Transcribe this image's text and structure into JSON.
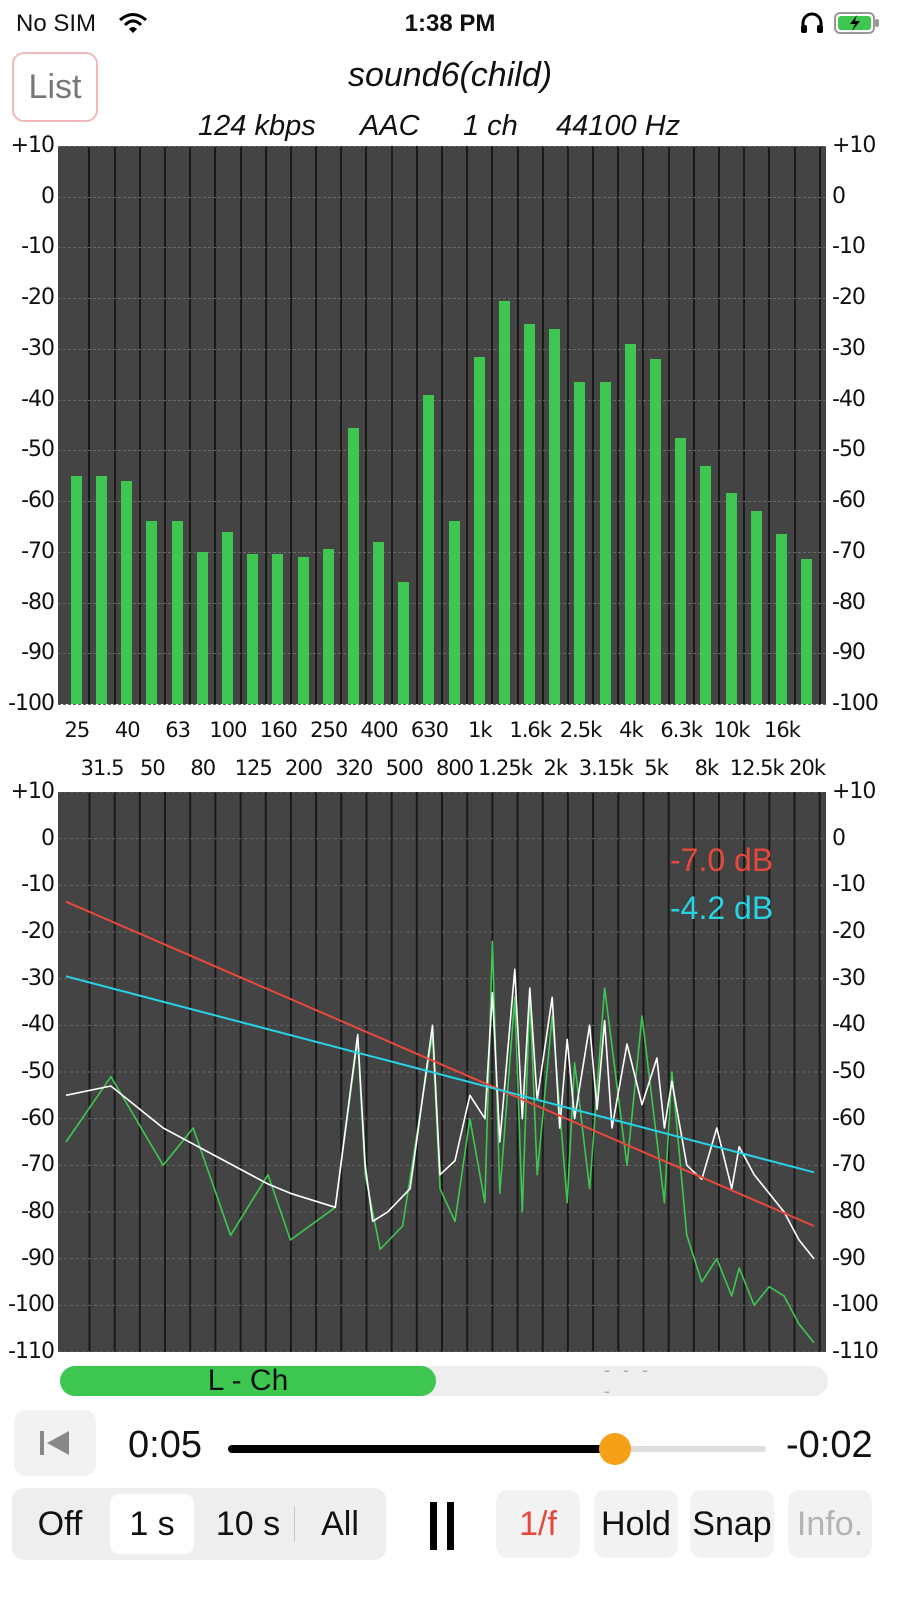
{
  "status_bar": {
    "carrier": "No SIM",
    "time": "1:38 PM"
  },
  "header": {
    "list_button": "List",
    "title": "sound6(child)",
    "bitrate": "124 kbps",
    "codec": "AAC",
    "channels": "1 ch",
    "sample_rate": "44100 Hz"
  },
  "chart_data": [
    {
      "type": "bar",
      "ylim": [
        -100,
        10
      ],
      "y_ticks": [
        "+10",
        "0",
        "-10",
        "-20",
        "-30",
        "-40",
        "-50",
        "-60",
        "-70",
        "-80",
        "-90",
        "-100"
      ],
      "categories": [
        "25",
        "31.5",
        "40",
        "50",
        "63",
        "80",
        "100",
        "125",
        "160",
        "200",
        "250",
        "320",
        "400",
        "500",
        "630",
        "800",
        "1k",
        "1.25k",
        "1.6k",
        "2k",
        "2.5k",
        "3.15k",
        "4k",
        "5k",
        "6.3k",
        "8k",
        "10k",
        "12.5k",
        "16k",
        "20k"
      ],
      "values": [
        -55,
        -55,
        -56,
        -64,
        -64,
        -70,
        -66,
        -70.5,
        -70.5,
        -71,
        -69.5,
        -45.5,
        -68,
        -76,
        -39,
        -64,
        -31.5,
        -20.5,
        -25,
        -26,
        -36.5,
        -36.5,
        -29,
        -32,
        -47.5,
        -53,
        -58.5,
        -62,
        -66.5,
        -71.5
      ],
      "grid": true,
      "colors": {
        "bar": "#3dc751",
        "background": "#444444"
      }
    },
    {
      "type": "line",
      "ylim": [
        -110,
        10
      ],
      "y_ticks": [
        "+10",
        "0",
        "-10",
        "-20",
        "-30",
        "-40",
        "-50",
        "-60",
        "-70",
        "-80",
        "-90",
        "-100",
        "-110"
      ],
      "annotations": [
        {
          "text": "-7.0 dB",
          "color": "#e8483b"
        },
        {
          "text": "-4.2 dB",
          "color": "#27d3e6"
        }
      ],
      "series": [
        {
          "color": "#e8483b",
          "x": [
            0,
            1
          ],
          "y": [
            -13.5,
            -83
          ]
        },
        {
          "color": "#27d3e6",
          "x": [
            0,
            1
          ],
          "y": [
            -29.5,
            -71.5
          ]
        },
        {
          "color": "#ffffff",
          "x": [
            0,
            0.06,
            0.13,
            0.2,
            0.27,
            0.3,
            0.36,
            0.39,
            0.4,
            0.41,
            0.43,
            0.46,
            0.49,
            0.5,
            0.52,
            0.54,
            0.56,
            0.57,
            0.58,
            0.6,
            0.61,
            0.62,
            0.63,
            0.65,
            0.66,
            0.67,
            0.68,
            0.7,
            0.71,
            0.72,
            0.73,
            0.75,
            0.77,
            0.79,
            0.8,
            0.81,
            0.83,
            0.85,
            0.87,
            0.89,
            0.9,
            0.92,
            0.94,
            0.96,
            0.98,
            1
          ],
          "y": [
            -55,
            -53,
            -62,
            -68,
            -74,
            -76,
            -79,
            -42,
            -70,
            -82,
            -80,
            -75,
            -40,
            -72,
            -69,
            -55,
            -60,
            -33,
            -65,
            -28,
            -60,
            -32,
            -56,
            -34,
            -62,
            -43,
            -60,
            -40,
            -58,
            -39,
            -62,
            -44,
            -57,
            -47,
            -62,
            -52,
            -70,
            -73,
            -62,
            -75,
            -66,
            -72,
            -76,
            -80,
            -86,
            -90
          ]
        },
        {
          "color": "#3dc751",
          "x": [
            0,
            0.06,
            0.13,
            0.17,
            0.22,
            0.27,
            0.3,
            0.36,
            0.39,
            0.4,
            0.42,
            0.45,
            0.49,
            0.5,
            0.52,
            0.54,
            0.56,
            0.57,
            0.58,
            0.6,
            0.61,
            0.62,
            0.63,
            0.65,
            0.67,
            0.68,
            0.7,
            0.72,
            0.75,
            0.77,
            0.8,
            0.81,
            0.83,
            0.85,
            0.87,
            0.89,
            0.9,
            0.92,
            0.94,
            0.96,
            0.98,
            1
          ],
          "y": [
            -65,
            -51,
            -70,
            -62,
            -85,
            -72,
            -86,
            -79,
            -43,
            -72,
            -88,
            -83,
            -42,
            -75,
            -82,
            -60,
            -78,
            -22,
            -76,
            -34,
            -80,
            -33,
            -72,
            -38,
            -78,
            -48,
            -75,
            -32,
            -70,
            -38,
            -78,
            -50,
            -85,
            -95,
            -90,
            -98,
            -92,
            -100,
            -96,
            -98,
            -104,
            -108
          ]
        }
      ],
      "grid": true
    }
  ],
  "channel": {
    "label": "L - Ch",
    "right_label": "- - - -",
    "level": 0.49
  },
  "transport": {
    "elapsed": "0:05",
    "remaining": "-0:02",
    "progress": 0.72
  },
  "controls": {
    "segments": [
      "Off",
      "1 s",
      "10 s",
      "All"
    ],
    "selected_segment": "1 s",
    "pause_icon": "pause-icon",
    "one_over_f": "1/f",
    "hold": "Hold",
    "snap": "Snap",
    "info": "Info."
  },
  "colors": {
    "accent_green": "#3dc751",
    "slider_thumb": "#f6a017",
    "active_red": "#e8483b",
    "disabled_gray": "#b3b3b3"
  }
}
